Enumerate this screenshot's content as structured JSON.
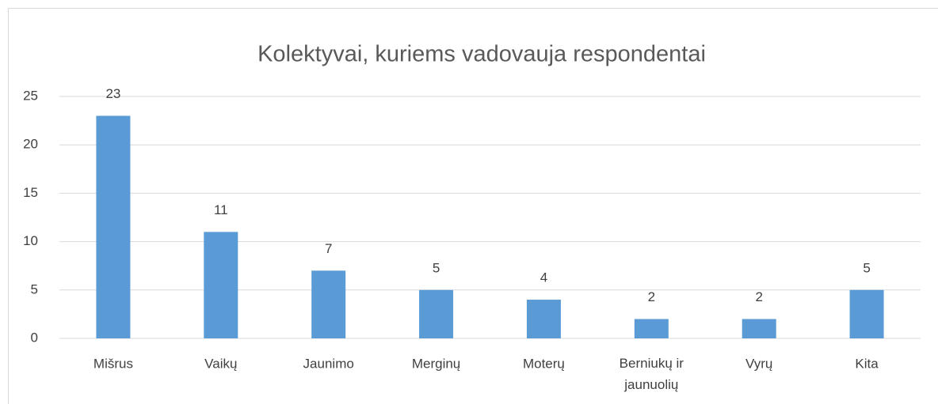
{
  "chart_data": {
    "type": "bar",
    "title": "Kolektyvai, kuriems vadovauja respondentai",
    "categories": [
      "Mišrus",
      "Vaikų",
      "Jaunimo",
      "Merginų",
      "Moterų",
      "Berniukų ir jaunuolių",
      "Vyrų",
      "Kita"
    ],
    "values": [
      23,
      11,
      7,
      5,
      4,
      2,
      2,
      5
    ],
    "color": "#5b9bd5",
    "ylim": [
      0,
      25
    ],
    "yticks": [
      0,
      5,
      10,
      15,
      20,
      25
    ],
    "grid": true
  }
}
